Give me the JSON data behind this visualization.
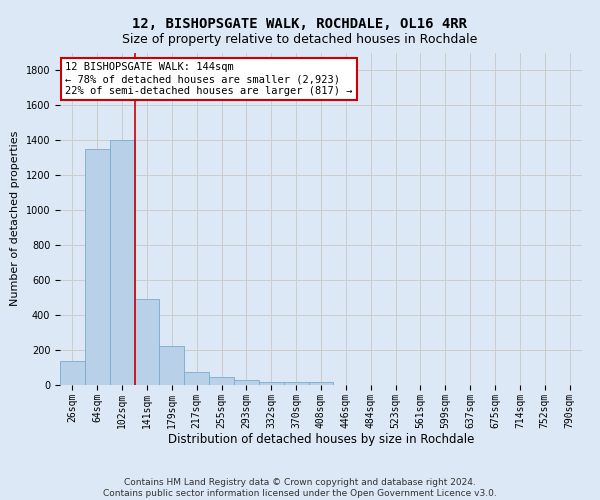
{
  "title": "12, BISHOPSGATE WALK, ROCHDALE, OL16 4RR",
  "subtitle": "Size of property relative to detached houses in Rochdale",
  "xlabel": "Distribution of detached houses by size in Rochdale",
  "ylabel": "Number of detached properties",
  "bar_values": [
    135,
    1350,
    1400,
    490,
    225,
    75,
    45,
    28,
    15,
    20,
    15,
    0,
    0,
    0,
    0,
    0,
    0,
    0,
    0,
    0,
    0
  ],
  "bar_labels": [
    "26sqm",
    "64sqm",
    "102sqm",
    "141sqm",
    "179sqm",
    "217sqm",
    "255sqm",
    "293sqm",
    "332sqm",
    "370sqm",
    "408sqm",
    "446sqm",
    "484sqm",
    "523sqm",
    "561sqm",
    "599sqm",
    "637sqm",
    "675sqm",
    "714sqm",
    "752sqm",
    "790sqm"
  ],
  "bar_color": "#b8d0e8",
  "bar_edge_color": "#7aabcc",
  "vline_x": 2.5,
  "vline_color": "#cc0000",
  "annotation_text": "12 BISHOPSGATE WALK: 144sqm\n← 78% of detached houses are smaller (2,923)\n22% of semi-detached houses are larger (817) →",
  "annotation_box_color": "#ffffff",
  "annotation_border_color": "#cc0000",
  "ylim": [
    0,
    1900
  ],
  "yticks": [
    0,
    200,
    400,
    600,
    800,
    1000,
    1200,
    1400,
    1600,
    1800
  ],
  "grid_color": "#cccccc",
  "bg_color": "#dce8f5",
  "footer_text": "Contains HM Land Registry data © Crown copyright and database right 2024.\nContains public sector information licensed under the Open Government Licence v3.0.",
  "title_fontsize": 10,
  "subtitle_fontsize": 9,
  "xlabel_fontsize": 8.5,
  "ylabel_fontsize": 8,
  "tick_fontsize": 7,
  "annotation_fontsize": 7.5,
  "footer_fontsize": 6.5
}
